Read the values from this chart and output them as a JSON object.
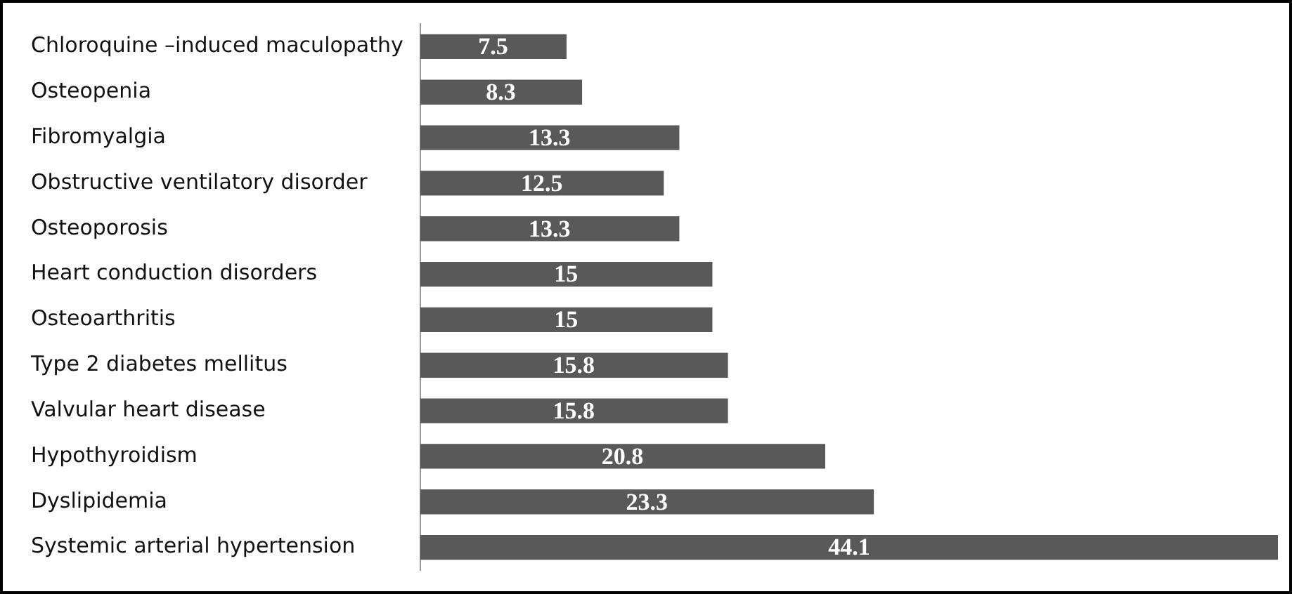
{
  "chart_data": {
    "type": "bar",
    "orientation": "horizontal",
    "categories": [
      "Chloroquine –induced maculopathy",
      "Osteopenia",
      "Fibromyalgia",
      "Obstructive ventilatory disorder",
      "Osteoporosis",
      "Heart conduction disorders",
      "Osteoarthritis",
      "Type 2 diabetes mellitus",
      "Valvular heart disease",
      "Hypothyroidism",
      "Dyslipidemia",
      "Systemic arterial hypertension"
    ],
    "values": [
      7.5,
      8.3,
      13.3,
      12.5,
      13.3,
      15,
      15,
      15.8,
      15.8,
      20.8,
      23.3,
      44.1
    ],
    "color": "#595959",
    "data_labels": true,
    "legend": false
  }
}
